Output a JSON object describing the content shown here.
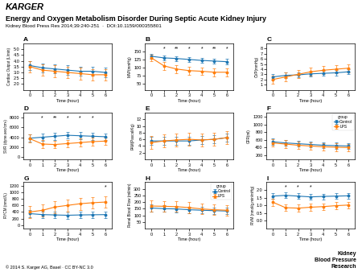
{
  "title": "Energy and Oxygen Metabolism Disorder During Septic Acute Kidney Injury",
  "subtitle": "Kidney Blood Press Res 2014;39:240-251  ·  DOI:10.1159/000355801",
  "publisher": "KARGER",
  "journal": [
    "Kidney",
    "Blood Pressure",
    "Research"
  ],
  "footer": "© 2014 S. Karger AG, Basel · CC BY-NC 3.0",
  "chart_data": [
    {
      "type": "line",
      "title": "A",
      "marker": "o",
      "xlabel": "Time (hour)",
      "ylabel": "Cardiac Output (L/min)",
      "x": [
        0,
        1,
        2,
        3,
        4,
        5,
        6
      ],
      "xlim": [
        -0.5,
        6.5
      ],
      "xticks": [
        0,
        1,
        2,
        3,
        4,
        5,
        6
      ],
      "ylim": [
        1.5,
        5.5
      ],
      "yticks": [
        {
          "value": 2.0,
          "label": "2.0"
        },
        2.5,
        {
          "value": 3.0,
          "label": "3.0"
        },
        3.5,
        {
          "value": 4.0,
          "label": "4.0"
        },
        4.5,
        {
          "value": 5.0,
          "label": "5.0"
        }
      ],
      "series": [
        {
          "values": [
            3.6,
            3.4,
            3.3,
            3.2,
            3.1,
            3.1,
            3.0
          ],
          "errors": [
            0.4,
            0.4,
            0.4,
            0.4,
            0.4,
            0.4,
            0.4
          ]
        },
        {
          "values": [
            3.5,
            3.2,
            3.1,
            3.0,
            2.9,
            2.8,
            2.8
          ],
          "errors": [
            0.5,
            0.5,
            0.5,
            0.5,
            0.5,
            0.5,
            0.5
          ]
        }
      ],
      "annotations": []
    },
    {
      "type": "line",
      "title": "B",
      "marker": "o",
      "xlabel": "Time (hour)",
      "ylabel": "MAP(mmHg)",
      "x": [
        0,
        1,
        2,
        3,
        4,
        5,
        6
      ],
      "xlim": [
        -0.5,
        6.5
      ],
      "xticks": [
        0,
        1,
        2,
        3,
        4,
        5,
        6
      ],
      "ylim": [
        30,
        175
      ],
      "yticks": [
        50,
        75,
        100,
        125,
        150
      ],
      "series": [
        {
          "values": [
            135,
            130,
            128,
            125,
            122,
            120,
            118
          ],
          "errors": [
            8,
            8,
            8,
            8,
            8,
            8,
            8
          ]
        },
        {
          "values": [
            130,
            105,
            95,
            90,
            88,
            85,
            85
          ],
          "errors": [
            10,
            12,
            12,
            12,
            12,
            12,
            12
          ]
        }
      ],
      "annotations": [
        {
          "x": 1,
          "text": "*"
        },
        {
          "x": 2,
          "text": "**"
        },
        {
          "x": 3,
          "text": "*"
        },
        {
          "x": 4,
          "text": "*"
        },
        {
          "x": 5,
          "text": "**"
        },
        {
          "x": 6,
          "text": "*"
        }
      ]
    },
    {
      "type": "line",
      "title": "C",
      "marker": "o",
      "xlabel": "Time (hour)",
      "ylabel": "CVP(mmHg)",
      "x": [
        0,
        1,
        2,
        3,
        4,
        5,
        6
      ],
      "xlim": [
        -0.5,
        6.5
      ],
      "xticks": [
        0,
        1,
        2,
        3,
        4,
        5,
        6
      ],
      "ylim": [
        0,
        9
      ],
      "yticks": [
        1,
        2,
        3,
        4,
        5,
        6,
        7,
        8
      ],
      "series": [
        {
          "values": [
            2.5,
            2.8,
            2.9,
            3.1,
            3.2,
            3.3,
            3.5
          ],
          "errors": [
            0.5,
            0.5,
            0.5,
            0.5,
            0.5,
            0.5,
            0.5
          ]
        },
        {
          "values": [
            2.0,
            2.5,
            3.0,
            3.5,
            3.8,
            4.0,
            4.2
          ],
          "errors": [
            0.8,
            0.8,
            0.8,
            0.8,
            0.8,
            0.8,
            0.8
          ]
        }
      ],
      "annotations": []
    },
    {
      "type": "line",
      "title": "D",
      "marker": "o",
      "xlabel": "Time (hour)",
      "ylabel": "SVR (dyne.sec/cm²)",
      "x": [
        0,
        1,
        2,
        3,
        4,
        5,
        6
      ],
      "xlim": [
        -0.5,
        6.5
      ],
      "xticks": [
        0,
        1,
        2,
        3,
        4,
        5,
        6
      ],
      "ylim": [
        -500,
        9000
      ],
      "yticks": [
        0,
        2000,
        4000,
        6000,
        8000
      ],
      "series": [
        {
          "values": [
            3800,
            4000,
            4200,
            4400,
            4300,
            4200,
            4100
          ],
          "errors": [
            700,
            700,
            700,
            700,
            700,
            700,
            700
          ]
        },
        {
          "values": [
            3700,
            2600,
            2500,
            2700,
            2900,
            3100,
            3200
          ],
          "errors": [
            800,
            800,
            800,
            800,
            800,
            800,
            800
          ]
        }
      ],
      "annotations": [
        {
          "x": 1,
          "text": "*"
        },
        {
          "x": 2,
          "text": "**"
        },
        {
          "x": 3,
          "text": "*"
        },
        {
          "x": 4,
          "text": "*"
        },
        {
          "x": 5,
          "text": "*"
        }
      ]
    },
    {
      "type": "line",
      "title": "E",
      "marker": "o",
      "xlabel": "Time (hour)",
      "ylabel": "PAM(Pascal/Kg)",
      "x": [
        0,
        1,
        2,
        3,
        4,
        5,
        6
      ],
      "xlim": [
        -0.5,
        6.5
      ],
      "xticks": [
        0,
        1,
        2,
        3,
        4,
        5,
        6
      ],
      "ylim": [
        0,
        14
      ],
      "yticks": [
        2,
        4,
        6,
        8,
        10,
        12
      ],
      "series": [
        {
          "values": [
            5.5,
            5.5,
            5.5,
            5.5,
            5.8,
            6.0,
            6.5
          ],
          "errors": [
            1.2,
            1.2,
            1.2,
            1.2,
            1.2,
            1.2,
            1.2
          ]
        },
        {
          "values": [
            5.0,
            5.5,
            5.8,
            6.0,
            5.8,
            6.0,
            6.5
          ],
          "errors": [
            2.0,
            2.0,
            2.0,
            2.0,
            2.0,
            2.0,
            2.0
          ]
        }
      ],
      "annotations": []
    },
    {
      "type": "line",
      "title": "F",
      "marker": "o",
      "xlabel": "Time (hour)",
      "ylabel": "GFR(ml)",
      "x": [
        0,
        1,
        2,
        3,
        4,
        5,
        6
      ],
      "xlim": [
        -0.5,
        6.5
      ],
      "xticks": [
        0,
        1,
        2,
        3,
        4,
        5,
        6
      ],
      "ylim": [
        100,
        1300
      ],
      "yticks": [
        200,
        400,
        600,
        800,
        1000,
        1200
      ],
      "series": [
        {
          "name": "Control",
          "values": [
            550,
            520,
            500,
            480,
            460,
            450,
            440
          ],
          "errors": [
            80,
            80,
            80,
            80,
            80,
            80,
            80
          ]
        },
        {
          "name": "LPS",
          "values": [
            520,
            490,
            460,
            440,
            420,
            410,
            400
          ],
          "errors": [
            100,
            100,
            100,
            100,
            100,
            100,
            100
          ]
        }
      ],
      "annotations": [],
      "legend": "upper right",
      "legend_title": "group"
    },
    {
      "type": "line",
      "title": "G",
      "marker": "o",
      "xlabel": "Time (hour)",
      "ylabel": "RYCM (nmol/L)",
      "x": [
        0,
        1,
        2,
        3,
        4,
        5,
        6
      ],
      "xlim": [
        -0.5,
        6.5
      ],
      "xticks": [
        0,
        1,
        2,
        3,
        4,
        5,
        6
      ],
      "ylim": [
        -100,
        1300
      ],
      "yticks": [
        0,
        200,
        400,
        600,
        800,
        1000,
        1200
      ],
      "series": [
        {
          "values": [
            350,
            320,
            310,
            300,
            310,
            315,
            320
          ],
          "errors": [
            100,
            100,
            100,
            100,
            100,
            100,
            100
          ]
        },
        {
          "values": [
            400,
            450,
            550,
            600,
            650,
            680,
            700
          ],
          "errors": [
            180,
            180,
            180,
            180,
            180,
            180,
            180
          ]
        }
      ],
      "annotations": [
        {
          "x": 6,
          "text": "*"
        }
      ]
    },
    {
      "type": "line",
      "title": "H",
      "marker": "o",
      "xlabel": "Time (hour)",
      "ylabel": "Renal Blood Flow (ml/min)",
      "x": [
        0,
        1,
        2,
        3,
        4,
        5,
        6
      ],
      "xlim": [
        -0.5,
        6.5
      ],
      "xticks": [
        0,
        1,
        2,
        3,
        4,
        5,
        6
      ],
      "ylim": [
        0,
        350
      ],
      "yticks": [
        50,
        100,
        150,
        200,
        250,
        300
      ],
      "series": [
        {
          "name": "Control",
          "values": [
            155,
            150,
            148,
            142,
            138,
            135,
            132
          ],
          "errors": [
            25,
            25,
            25,
            25,
            25,
            25,
            25
          ]
        },
        {
          "name": "LPS",
          "values": [
            170,
            168,
            165,
            158,
            148,
            142,
            138
          ],
          "errors": [
            40,
            40,
            40,
            40,
            40,
            40,
            40
          ]
        }
      ],
      "annotations": [],
      "legend": "upper right",
      "legend_title": "group"
    },
    {
      "type": "line",
      "title": "I",
      "marker": "o",
      "xlabel": "Time (hour)",
      "ylabel": "RVM (nmol/g.min/mHg)",
      "x": [
        0,
        1,
        2,
        3,
        4,
        5,
        6
      ],
      "xlim": [
        -0.5,
        6.5
      ],
      "xticks": [
        0,
        1,
        2,
        3,
        4,
        5,
        6
      ],
      "ylim": [
        -0.5,
        2.5
      ],
      "yticks": [
        {
          "value": 0.0,
          "label": "0.0"
        },
        0.5,
        {
          "value": 1.0,
          "label": "1.0"
        },
        1.5,
        {
          "value": 2.0,
          "label": "2.0"
        }
      ],
      "series": [
        {
          "values": [
            1.6,
            1.65,
            1.6,
            1.55,
            1.58,
            1.6,
            1.62
          ],
          "errors": [
            0.18,
            0.18,
            0.18,
            0.18,
            0.18,
            0.18,
            0.18
          ]
        },
        {
          "values": [
            1.2,
            0.85,
            0.82,
            0.88,
            0.92,
            0.98,
            1.02
          ],
          "errors": [
            0.22,
            0.22,
            0.22,
            0.22,
            0.22,
            0.22,
            0.22
          ]
        }
      ],
      "annotations": [
        {
          "x": 1,
          "text": "*"
        },
        {
          "x": 2,
          "text": "*"
        },
        {
          "x": 3,
          "text": "*"
        }
      ]
    }
  ]
}
